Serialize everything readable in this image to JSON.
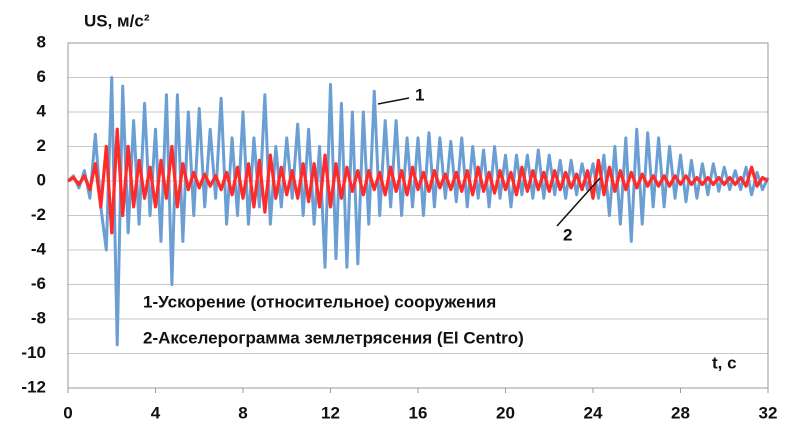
{
  "chart_data": {
    "type": "line",
    "y_label": "US, м/с²",
    "x_label": "t, с",
    "annotations": [
      "1-Ускорение (относительное) сооружения",
      "2-Акселерограмма землетрясения (El Centro)"
    ],
    "xlim": [
      0,
      32
    ],
    "xticks": [
      0,
      4,
      8,
      12,
      16,
      20,
      24,
      28,
      32
    ],
    "ylim": [
      -12,
      8
    ],
    "yticks": [
      -12,
      -10,
      -8,
      -6,
      -4,
      -2,
      0,
      2,
      4,
      6,
      8
    ],
    "grid": true,
    "x": [
      0,
      0.25,
      0.5,
      0.75,
      1,
      1.25,
      1.5,
      1.75,
      2,
      2.25,
      2.5,
      2.75,
      3,
      3.25,
      3.5,
      3.75,
      4,
      4.25,
      4.5,
      4.75,
      5,
      5.25,
      5.5,
      5.75,
      6,
      6.25,
      6.5,
      6.75,
      7,
      7.25,
      7.5,
      7.75,
      8,
      8.25,
      8.5,
      8.75,
      9,
      9.25,
      9.5,
      9.75,
      10,
      10.25,
      10.5,
      10.75,
      11,
      11.25,
      11.5,
      11.75,
      12,
      12.25,
      12.5,
      12.75,
      13,
      13.25,
      13.5,
      13.75,
      14,
      14.25,
      14.5,
      14.75,
      15,
      15.25,
      15.5,
      15.75,
      16,
      16.25,
      16.5,
      16.75,
      17,
      17.25,
      17.5,
      17.75,
      18,
      18.25,
      18.5,
      18.75,
      19,
      19.25,
      19.5,
      19.75,
      20,
      20.25,
      20.5,
      20.75,
      21,
      21.25,
      21.5,
      21.75,
      22,
      22.25,
      22.5,
      22.75,
      23,
      23.25,
      23.5,
      23.75,
      24,
      24.25,
      24.5,
      24.75,
      25,
      25.25,
      25.5,
      25.75,
      26,
      26.25,
      26.5,
      26.75,
      27,
      27.25,
      27.5,
      27.75,
      28,
      28.25,
      28.5,
      28.75,
      29,
      29.25,
      29.5,
      29.75,
      30,
      30.25,
      30.5,
      30.75,
      31,
      31.25,
      31.5,
      31.75,
      32
    ],
    "series": [
      {
        "name": "1",
        "color": "#6b9fd4",
        "values": [
          0,
          0.3,
          -0.4,
          0.6,
          -1,
          2.7,
          -1.5,
          -4,
          6,
          -9.5,
          5.5,
          -3,
          3.5,
          -2.5,
          4.5,
          -2,
          3,
          -3.5,
          5,
          -6,
          5,
          -3.5,
          4,
          -2,
          4.2,
          -1.5,
          3,
          -1,
          4.8,
          -2.5,
          2.5,
          -2,
          4,
          -2.5,
          2.5,
          -1.5,
          5,
          -2.5,
          2,
          -1.5,
          2.5,
          -1,
          3.3,
          -2,
          3,
          -2.5,
          2,
          -5,
          5.6,
          -4.5,
          4.5,
          -5,
          4,
          -4.8,
          4,
          -2.5,
          5.2,
          -2,
          3.5,
          -1.5,
          3.5,
          -2,
          2.5,
          -1.5,
          2.5,
          -2,
          2.8,
          -1.5,
          2.5,
          -1,
          2.3,
          -1.2,
          2.5,
          -1.5,
          2,
          -1,
          1.8,
          -1.5,
          2,
          -1,
          1.5,
          -1.5,
          1.5,
          -0.8,
          1.5,
          -1,
          1.8,
          -1,
          1.5,
          -0.8,
          1.2,
          -1,
          1.2,
          -0.8,
          1,
          -0.5,
          1,
          -1,
          1.5,
          -2,
          2,
          -2.5,
          2.5,
          -3.5,
          3,
          -2.5,
          2.8,
          -1.5,
          2.5,
          -1.5,
          2,
          -1,
          1.5,
          -1.2,
          1.2,
          -1,
          1,
          -0.8,
          1,
          -0.6,
          0.8,
          -0.5,
          0.6,
          -0.5,
          0.8,
          -0.8,
          0.5,
          -0.5,
          0.2
        ]
      },
      {
        "name": "2",
        "color": "#ff2a2a",
        "values": [
          0,
          0.2,
          -0.2,
          0.3,
          -0.5,
          1,
          -1.5,
          2,
          -3,
          3,
          -2,
          2,
          -1.5,
          1.2,
          -1,
          0.8,
          -1.5,
          1.2,
          -1,
          2,
          -1.5,
          1,
          -0.5,
          0.5,
          -0.4,
          0.4,
          -0.3,
          0.3,
          -0.5,
          0.5,
          -0.8,
          0.8,
          -1,
          1,
          -1.5,
          1.2,
          -1.8,
          1.5,
          -1,
          0.8,
          -0.8,
          0.6,
          -1,
          1,
          -1.2,
          1,
          -1.5,
          1.5,
          -1.5,
          1,
          -1,
          0.8,
          -0.6,
          0.6,
          -0.8,
          0.6,
          -0.5,
          0.5,
          -0.8,
          0.8,
          -0.6,
          0.6,
          -0.8,
          0.8,
          -0.5,
          0.5,
          -0.6,
          0.6,
          -0.4,
          0.4,
          -0.5,
          0.5,
          -0.6,
          0.6,
          -0.8,
          0.8,
          -0.6,
          0.5,
          -0.7,
          0.6,
          -0.5,
          0.5,
          -0.8,
          0.8,
          -0.6,
          0.6,
          -0.5,
          0.5,
          -0.6,
          0.6,
          -0.5,
          0.5,
          -0.4,
          0.4,
          -0.5,
          0.6,
          -1,
          1.2,
          -0.8,
          0.8,
          -0.6,
          0.6,
          -0.5,
          0.5,
          -0.4,
          0.4,
          -0.3,
          0.3,
          -0.3,
          0.3,
          -0.3,
          0.3,
          -0.2,
          0.3,
          -0.2,
          0.2,
          -0.2,
          0.2,
          -0.2,
          0.2,
          -0.2,
          0.2,
          -0.2,
          0.2,
          -0.3,
          0.8,
          -0.3,
          0.2,
          0
        ]
      }
    ]
  }
}
